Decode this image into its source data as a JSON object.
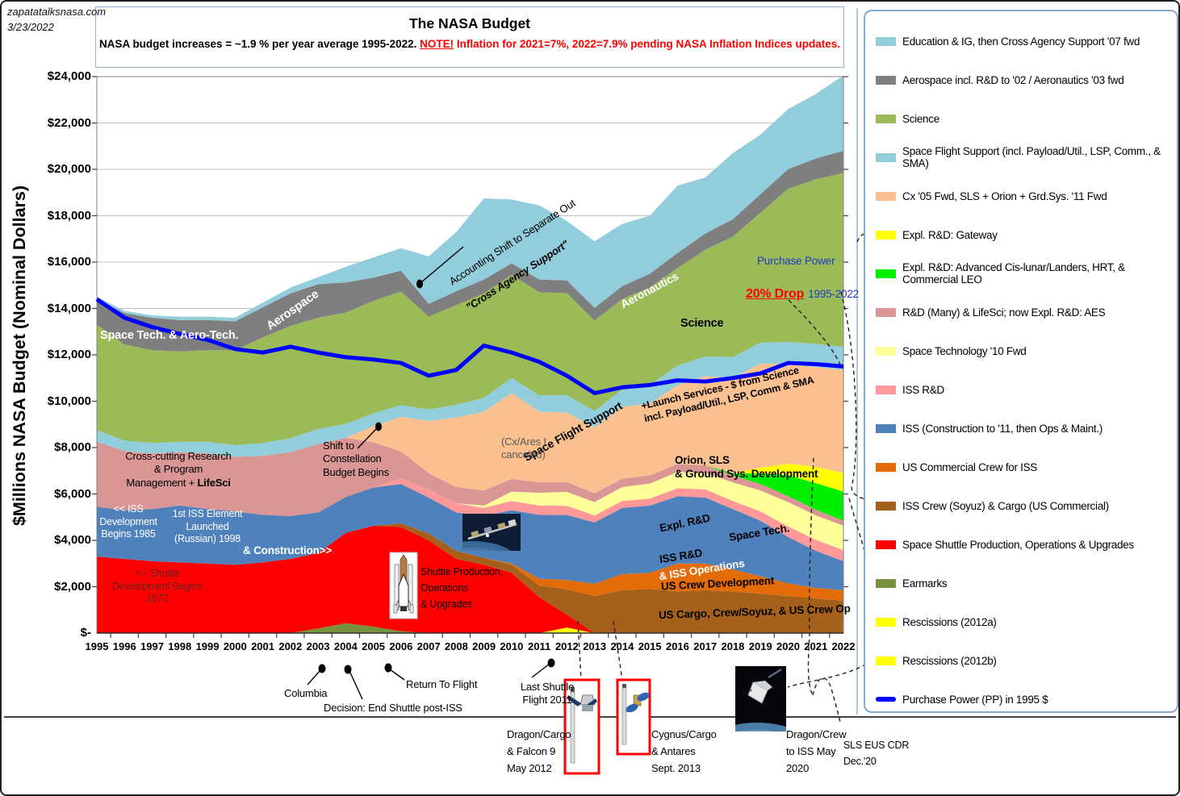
{
  "page": {
    "source": "zapatatalksnasa.com",
    "date": "3/23/2022"
  },
  "title_box": {
    "title": "The NASA Budget",
    "subtitle_prefix": "NASA budget increases = ~1.9 % per year average 1995-2022. ",
    "subtitle_note": "NOTE!",
    "subtitle_red": " Inflation for 2021=7%, 2022=7.9% pending NASA Inflation Indices updates."
  },
  "axes": {
    "y_title": "$Millions NASA Budget (Nominal Dollars)",
    "y_ticks": [
      "$24,000",
      "$22,000",
      "$20,000",
      "$18,000",
      "$16,000",
      "$14,000",
      "$12,000",
      "$10,000",
      "$8,000",
      "$6,000",
      "$4,000",
      "$2,000",
      "$-"
    ]
  },
  "legend": {
    "items": [
      {
        "label": "Education & IG, then Cross Agency Support '07 fwd",
        "color": "#92CDDC",
        "type": "box"
      },
      {
        "label": "Aerospace incl. R&D to '02 / Aeronautics '03 fwd",
        "color": "#7F7F7F",
        "type": "box"
      },
      {
        "label": "Science",
        "color": "#9BBB59",
        "type": "box"
      },
      {
        "label": "Space Flight Support (incl. Payload/Util., LSP, Comm., & SMA)",
        "color": "#92CDDC",
        "type": "box"
      },
      {
        "label": "Cx '05 Fwd, SLS + Orion + Grd.Sys. '11 Fwd",
        "color": "#FAC090",
        "type": "box"
      },
      {
        "label": "Expl. R&D: Gateway",
        "color": "#FFFF00",
        "type": "box"
      },
      {
        "label": "Expl. R&D: Advanced Cis-lunar/Landers, HRT, & Commercial LEO",
        "color": "#00EE00",
        "type": "box"
      },
      {
        "label": "R&D (Many) & LifeSci; now Expl. R&D: AES",
        "color": "#D99694",
        "type": "box"
      },
      {
        "label": "Space Technology '10 Fwd",
        "color": "#FFFF99",
        "type": "box"
      },
      {
        "label": "ISS R&D",
        "color": "#FF9999",
        "type": "box"
      },
      {
        "label": "ISS (Construction to '11, then Ops & Maint.)",
        "color": "#4F81BD",
        "type": "box"
      },
      {
        "label": "US Commercial Crew for ISS",
        "color": "#E36C09",
        "type": "box"
      },
      {
        "label": "ISS Crew (Soyuz) & Cargo (US Commercial)",
        "color": "#A5611C",
        "type": "box"
      },
      {
        "label": "Space Shuttle Production, Operations & Upgrades",
        "color": "#FF0000",
        "type": "box"
      },
      {
        "label": "Earmarks",
        "color": "#76923C",
        "type": "box"
      },
      {
        "label": "Rescissions (2012a)",
        "color": "#FFFF00",
        "type": "box"
      },
      {
        "label": "Rescissions (2012b)",
        "color": "#FFFF00",
        "type": "box"
      },
      {
        "label": "Purchase Power (PP) in 1995 $",
        "color": "#0000FF",
        "type": "line"
      }
    ]
  },
  "chart_data": {
    "type": "area",
    "stacked": true,
    "ylim": [
      0,
      24000
    ],
    "grid_step": 2000,
    "years": [
      1995,
      1996,
      1997,
      1998,
      1999,
      2000,
      2001,
      2002,
      2003,
      2004,
      2005,
      2006,
      2007,
      2008,
      2009,
      2010,
      2011,
      2012,
      2013,
      2014,
      2015,
      2016,
      2017,
      2018,
      2019,
      2020,
      2021,
      2022
    ],
    "series": [
      {
        "name": "Rescissions (2012b)",
        "color": "#FFFF00",
        "values": [
          0,
          0,
          0,
          0,
          0,
          0,
          0,
          0,
          0,
          0,
          0,
          0,
          0,
          0,
          0,
          0,
          0,
          120,
          0,
          0,
          0,
          0,
          0,
          0,
          0,
          0,
          0,
          0
        ]
      },
      {
        "name": "Rescissions (2012a)",
        "color": "#FFFF00",
        "values": [
          0,
          0,
          0,
          0,
          0,
          0,
          0,
          0,
          0,
          0,
          0,
          0,
          0,
          0,
          0,
          0,
          0,
          120,
          0,
          0,
          0,
          0,
          0,
          0,
          0,
          0,
          0,
          0
        ]
      },
      {
        "name": "Earmarks",
        "color": "#76923C",
        "values": [
          0,
          0,
          0,
          0,
          0,
          0,
          0,
          0,
          200,
          420,
          280,
          80,
          0,
          0,
          0,
          0,
          0,
          0,
          0,
          0,
          0,
          0,
          0,
          0,
          0,
          0,
          0,
          0
        ]
      },
      {
        "name": "Space Shuttle Production, Operations & Upgrades",
        "color": "#FF0000",
        "values": [
          3300,
          3200,
          3100,
          3050,
          3000,
          2950,
          3050,
          3200,
          3250,
          3900,
          4350,
          4500,
          4000,
          3200,
          2950,
          2600,
          1550,
          550,
          0,
          0,
          0,
          0,
          0,
          0,
          0,
          0,
          0,
          0
        ]
      },
      {
        "name": "ISS Crew (Soyuz) & Cargo (US Commercial)",
        "color": "#A5611C",
        "values": [
          0,
          0,
          0,
          0,
          0,
          0,
          0,
          0,
          0,
          0,
          0,
          150,
          300,
          350,
          300,
          350,
          500,
          1100,
          1600,
          1850,
          1900,
          1800,
          1850,
          1800,
          1700,
          1600,
          1500,
          1400
        ]
      },
      {
        "name": "US Commercial Crew for ISS",
        "color": "#E36C09",
        "values": [
          0,
          0,
          0,
          0,
          0,
          0,
          0,
          0,
          0,
          0,
          0,
          0,
          0,
          0,
          0,
          50,
          300,
          400,
          525,
          700,
          700,
          1200,
          1150,
          950,
          750,
          550,
          450,
          450
        ]
      },
      {
        "name": "ISS (Construction to '11, then Ops & Maint.)",
        "color": "#4F81BD",
        "values": [
          2150,
          2100,
          2250,
          2450,
          2350,
          2300,
          2050,
          1850,
          1750,
          1550,
          1650,
          1700,
          1550,
          1650,
          1800,
          2300,
          2750,
          2800,
          2650,
          2850,
          2900,
          2900,
          2850,
          2600,
          2400,
          2000,
          1600,
          1250
        ]
      },
      {
        "name": "ISS R&D",
        "color": "#FF9999",
        "values": [
          0,
          0,
          0,
          0,
          0,
          0,
          0,
          0,
          0,
          0,
          0,
          250,
          350,
          400,
          350,
          400,
          400,
          400,
          300,
          300,
          300,
          350,
          350,
          350,
          400,
          450,
          480,
          480
        ]
      },
      {
        "name": "Space Technology '10 Fwd",
        "color": "#FFFF99",
        "values": [
          0,
          0,
          0,
          0,
          0,
          0,
          0,
          0,
          0,
          0,
          0,
          0,
          0,
          0,
          100,
          400,
          550,
          600,
          575,
          600,
          650,
          700,
          700,
          800,
          900,
          1050,
          1050,
          1050
        ]
      },
      {
        "name": "R&D (Many) & LifeSci; now Expl. R&D: AES",
        "color": "#D99694",
        "values": [
          2800,
          2550,
          2400,
          2300,
          2400,
          2350,
          2550,
          2750,
          2950,
          2550,
          1950,
          1150,
          700,
          700,
          650,
          550,
          450,
          420,
          380,
          360,
          350,
          340,
          330,
          300,
          280,
          260,
          240,
          220
        ]
      },
      {
        "name": "Expl. R&D: Advanced Cis-lunar/Landers, HRT, & Commercial LEO",
        "color": "#00EE00",
        "values": [
          0,
          0,
          0,
          0,
          0,
          0,
          0,
          0,
          0,
          0,
          0,
          0,
          0,
          0,
          0,
          0,
          0,
          0,
          0,
          0,
          0,
          0,
          0,
          100,
          450,
          900,
          1150,
          1250
        ]
      },
      {
        "name": "Expl. R&D: Gateway",
        "color": "#FFFF00",
        "values": [
          0,
          0,
          0,
          0,
          0,
          0,
          0,
          0,
          0,
          0,
          0,
          0,
          0,
          0,
          0,
          0,
          0,
          0,
          0,
          0,
          0,
          0,
          0,
          0,
          250,
          500,
          700,
          800
        ]
      },
      {
        "name": "Cx '05 Fwd, SLS + Orion + Grd.Sys. '11 Fwd",
        "color": "#FAC090",
        "values": [
          0,
          0,
          0,
          0,
          0,
          0,
          0,
          0,
          0,
          0,
          700,
          1500,
          2250,
          3000,
          3400,
          3700,
          3050,
          3000,
          2850,
          3100,
          3100,
          3400,
          3850,
          4100,
          4500,
          4300,
          4300,
          4450
        ]
      },
      {
        "name": "Space Flight Support (incl. Payload/Util., LSP, Comm., & SMA)",
        "color": "#92CDDC",
        "values": [
          500,
          450,
          450,
          450,
          500,
          500,
          550,
          600,
          650,
          600,
          550,
          500,
          500,
          550,
          600,
          650,
          700,
          750,
          700,
          750,
          800,
          850,
          850,
          900,
          900,
          950,
          1000,
          1000
        ]
      },
      {
        "name": "Science",
        "color": "#9BBB59",
        "values": [
          4550,
          4150,
          4000,
          3900,
          3950,
          4100,
          4550,
          4850,
          4800,
          4800,
          4850,
          4900,
          4000,
          4300,
          4500,
          4450,
          4450,
          4400,
          3900,
          3900,
          4200,
          4200,
          4600,
          5200,
          5600,
          6600,
          7100,
          7500
        ]
      },
      {
        "name": "Aerospace incl. R&D to '02 / Aeronautics '03 fwd",
        "color": "#7F7F7F",
        "values": [
          1100,
          1350,
          1400,
          1350,
          1300,
          1250,
          1300,
          1400,
          1450,
          1300,
          1000,
          900,
          550,
          600,
          600,
          500,
          550,
          550,
          550,
          550,
          600,
          650,
          700,
          750,
          800,
          850,
          900,
          950
        ]
      },
      {
        "name": "Education & IG, then Cross Agency Support '07 fwd",
        "color": "#92CDDC",
        "values": [
          100,
          100,
          100,
          150,
          150,
          150,
          200,
          250,
          300,
          680,
          870,
          970,
          2050,
          2550,
          3500,
          2750,
          3200,
          2560,
          2870,
          2690,
          2500,
          2910,
          2420,
          2850,
          2570,
          2590,
          2780,
          3250
        ]
      }
    ],
    "purchase_power": {
      "name": "Purchase Power (PP) in 1995 $",
      "color": "#0000FF",
      "values": [
        14400,
        13600,
        13200,
        12900,
        12650,
        12250,
        12100,
        12350,
        12100,
        11900,
        11800,
        11650,
        11100,
        11350,
        12400,
        12100,
        11700,
        11100,
        10350,
        10600,
        10700,
        10900,
        10850,
        11000,
        11200,
        11650,
        11600,
        11500
      ]
    }
  },
  "annotations": {
    "space_tech_aero": "Space Tech. & Aero-Tech.",
    "aerospace": "Aerospace",
    "aeronautics": "Aeronautics",
    "science": "Science",
    "accounting_line1": "Accounting Shift to Separate Out",
    "accounting_line2": "\"Cross Agency Support\"",
    "launch_services": "+Launch Services - $ from Science\nincl. Payload/Util., LSP, Comm & SMA",
    "space_flight_support": "Space Flight Support",
    "cross_cutting_a": "Cross-cutting Research\n& Program\nManagement + ",
    "cross_cutting_b": "LifeSci",
    "shift_constellation": "Shift to\nConstellation\nBudget Begins",
    "cx_ares": "(Cx/Ares I\ncanceled)",
    "orion_sls": "Orion, SLS\n& Ground Sys. Development",
    "iss_dev": "<< ISS\nDevelopment\nBegins 1985",
    "iss_first": "1st ISS Element\nLaunched\n(Russian) 1998",
    "construction": "& Construction>>",
    "shuttle_dev": "<-- Shuttle\nDevelopment Begins\n1972",
    "shuttle_prod": "Shuttle Production,\nOperations\n& Upgrades",
    "expl_rnd": "Expl. R&D",
    "space_tech2": "Space Tech.",
    "iss_rnd": "ISS R&D",
    "iss_ops": "& ISS Operations",
    "us_crew_dev": "US Crew Development",
    "us_cargo": "US Cargo, Crew/Soyuz, & US Crew  Op",
    "purchase_power": "Purchase Power",
    "pp_drop": "20% Drop",
    "pp_years": "1995-2022",
    "columbia": "Columbia",
    "decision": "Decision: End Shuttle post-ISS",
    "rtf": "Return To Flight",
    "last_shuttle": "Last Shuttle\nFlight 2011",
    "dragon_cargo": "Dragon/Cargo\n& Falcon 9\nMay 2012",
    "cygnus": "Cygnus/Cargo\n& Antares\nSept. 2013",
    "dragon_crew": "Dragon/Crew\nto ISS May\n2020",
    "sls_eus": "SLS EUS CDR\nDec.'20"
  }
}
